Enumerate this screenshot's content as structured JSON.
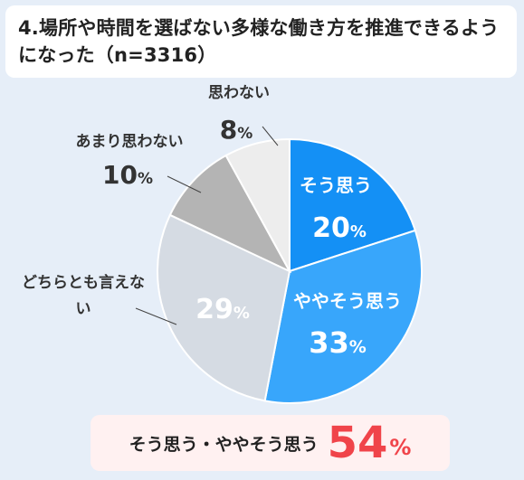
{
  "title": "4.場所や時間を選ばない多様な働き方を推進できるようになった（n=3316）",
  "chart_data": {
    "type": "pie",
    "unit": "%",
    "slices": [
      {
        "label": "そう思う",
        "value": 20,
        "color": "#1490f5",
        "label_inside": true
      },
      {
        "label": "ややそう思う",
        "value": 33,
        "color": "#38a6fb",
        "label_inside": true
      },
      {
        "label": "どちらとも言えない",
        "value": 29,
        "color": "#d5dbe3",
        "label_inside": false
      },
      {
        "label": "あまり思わない",
        "value": 10,
        "color": "#b4b4b4",
        "label_inside": false
      },
      {
        "label": "思わない",
        "value": 8,
        "color": "#ededed",
        "label_inside": false
      }
    ]
  },
  "summary": {
    "label": "そう思う・ややそう思う",
    "value": "54",
    "unit": "%"
  }
}
